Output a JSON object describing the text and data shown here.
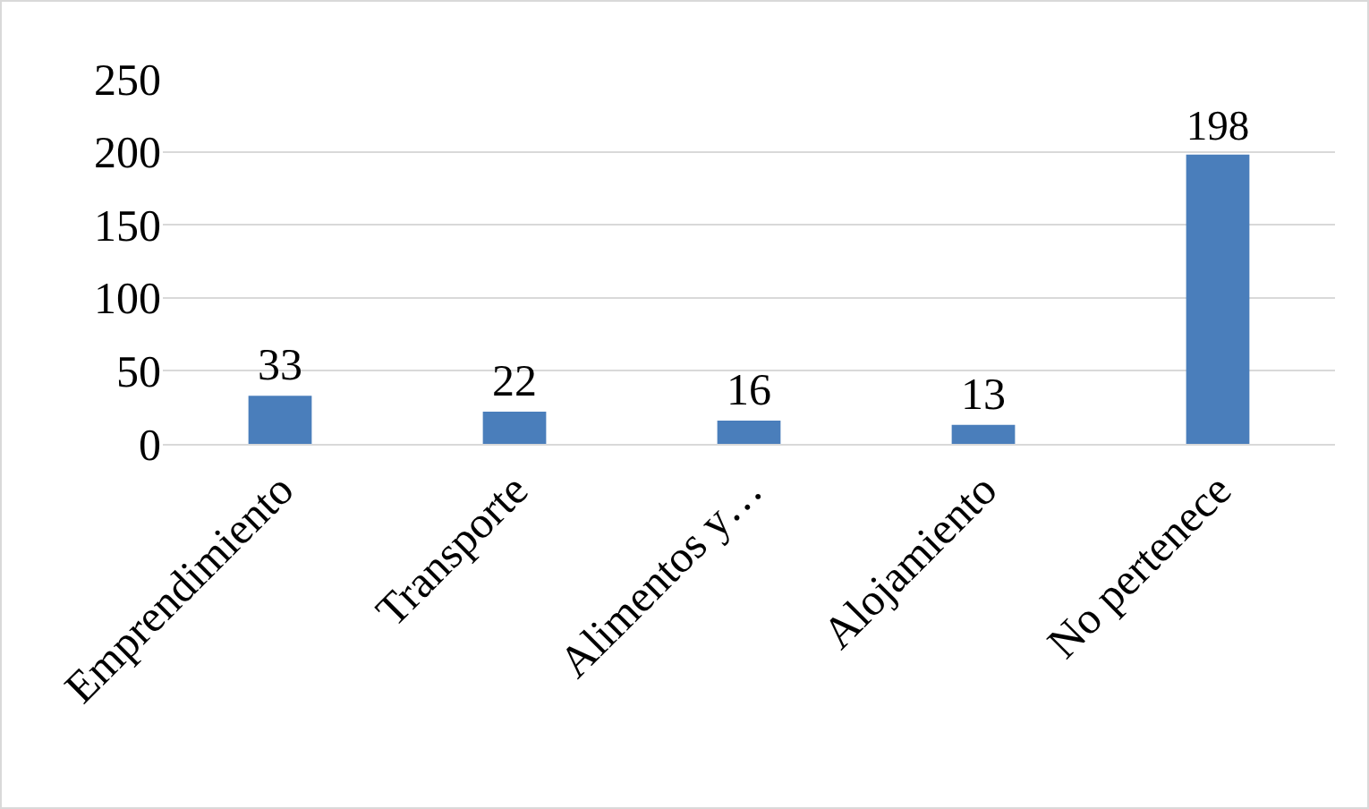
{
  "chart_data": {
    "type": "bar",
    "categories": [
      "Emprendimiento",
      "Transporte",
      "Alimentos y…",
      "Alojamiento",
      "No pertenece"
    ],
    "values": [
      33,
      22,
      16,
      13,
      198
    ],
    "color": "#4a7ebb",
    "ylim": [
      0,
      250
    ],
    "yticks": [
      0,
      50,
      100,
      150,
      200,
      250
    ],
    "grid": "y",
    "data_labels": true
  }
}
